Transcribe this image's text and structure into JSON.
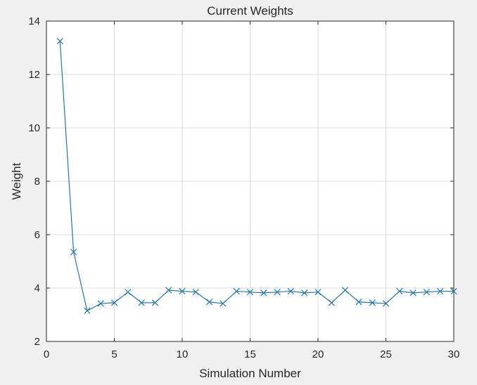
{
  "chart_data": {
    "type": "line",
    "title": "Current Weights",
    "xlabel": "Simulation Number",
    "ylabel": "Weight",
    "xlim": [
      0,
      30
    ],
    "ylim": [
      2,
      14
    ],
    "xticks": [
      0,
      5,
      10,
      15,
      20,
      25,
      30
    ],
    "yticks": [
      2,
      4,
      6,
      8,
      10,
      12,
      14
    ],
    "grid": true,
    "marker": "x",
    "line_color": "#1f77b4",
    "series": [
      {
        "x": [
          1,
          2,
          3,
          4,
          5,
          6,
          7,
          8,
          9,
          10,
          11,
          12,
          13,
          14,
          15,
          16,
          17,
          18,
          19,
          20,
          21,
          22,
          23,
          24,
          25,
          26,
          27,
          28,
          29,
          30
        ],
        "values": [
          13.25,
          5.35,
          3.15,
          3.42,
          3.45,
          3.85,
          3.45,
          3.45,
          3.92,
          3.88,
          3.85,
          3.48,
          3.42,
          3.88,
          3.85,
          3.82,
          3.85,
          3.88,
          3.82,
          3.85,
          3.45,
          3.92,
          3.48,
          3.45,
          3.42,
          3.88,
          3.82,
          3.85,
          3.88,
          3.88
        ]
      }
    ]
  }
}
